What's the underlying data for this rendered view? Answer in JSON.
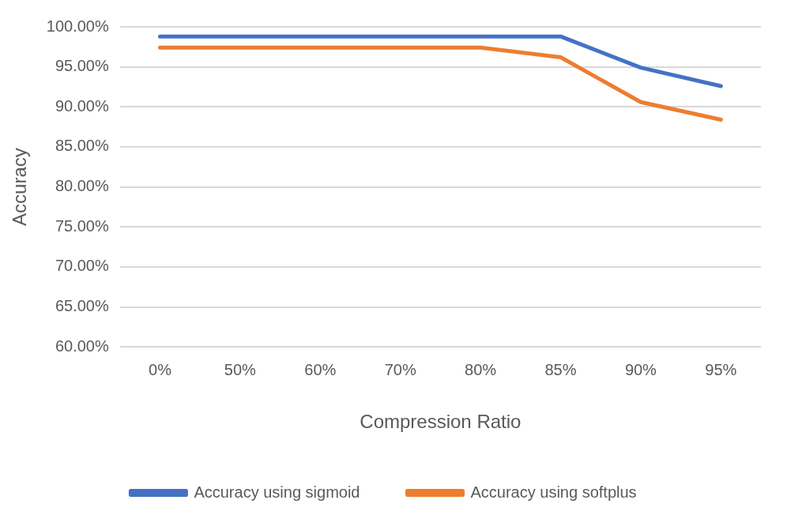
{
  "chart_data": {
    "type": "line",
    "xlabel": "Compression Ratio",
    "ylabel": "Accuracy",
    "categories": [
      "0%",
      "50%",
      "60%",
      "70%",
      "80%",
      "85%",
      "90%",
      "95%"
    ],
    "series": [
      {
        "name": "Accuracy using sigmoid",
        "color": "#4472c4",
        "values": [
          98.8,
          98.8,
          98.8,
          98.8,
          98.8,
          98.8,
          94.9,
          92.6
        ]
      },
      {
        "name": "Accuracy using softplus",
        "color": "#ed7d31",
        "values": [
          97.4,
          97.4,
          97.4,
          97.4,
          97.4,
          96.2,
          90.6,
          88.4
        ]
      }
    ],
    "ylim": [
      60,
      100
    ],
    "yticks": [
      {
        "value": 60,
        "label": "60.00%"
      },
      {
        "value": 65,
        "label": "65.00%"
      },
      {
        "value": 70,
        "label": "70.00%"
      },
      {
        "value": 75,
        "label": "75.00%"
      },
      {
        "value": 80,
        "label": "80.00%"
      },
      {
        "value": 85,
        "label": "85.00%"
      },
      {
        "value": 90,
        "label": "90.00%"
      },
      {
        "value": 95,
        "label": "95.00%"
      },
      {
        "value": 100,
        "label": "100.00%"
      }
    ],
    "grid": "y",
    "legend": "bottom",
    "marker": "none",
    "line_style": "solid"
  }
}
